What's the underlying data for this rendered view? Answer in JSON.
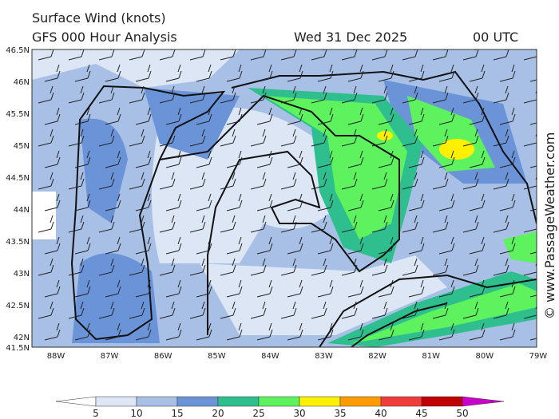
{
  "header": {
    "title": "Surface Wind (knots)",
    "subtitle": "GFS 000 Hour Analysis",
    "date": "Wed 31 Dec 2025",
    "time": "00 UTC"
  },
  "watermark": "© www.PassageWeather.com",
  "lat_labels": [
    "46.5N",
    "46N",
    "45.5N",
    "45N",
    "44.5N",
    "44N",
    "43.5N",
    "43N",
    "42.5N",
    "42N",
    "41.5N"
  ],
  "lon_labels": [
    "88W",
    "87W",
    "86W",
    "85W",
    "84W",
    "83W",
    "82W",
    "81W",
    "80W",
    "79W"
  ],
  "colorbar": {
    "levels": [
      5,
      10,
      15,
      20,
      25,
      30,
      35,
      40,
      45,
      50
    ],
    "colors": [
      "#ffffff",
      "#dce6f5",
      "#a8c0e6",
      "#6b94d8",
      "#2fbf8f",
      "#5ef25e",
      "#fff000",
      "#ff9a00",
      "#f03c3c",
      "#c00000",
      "#c800c8"
    ]
  }
}
